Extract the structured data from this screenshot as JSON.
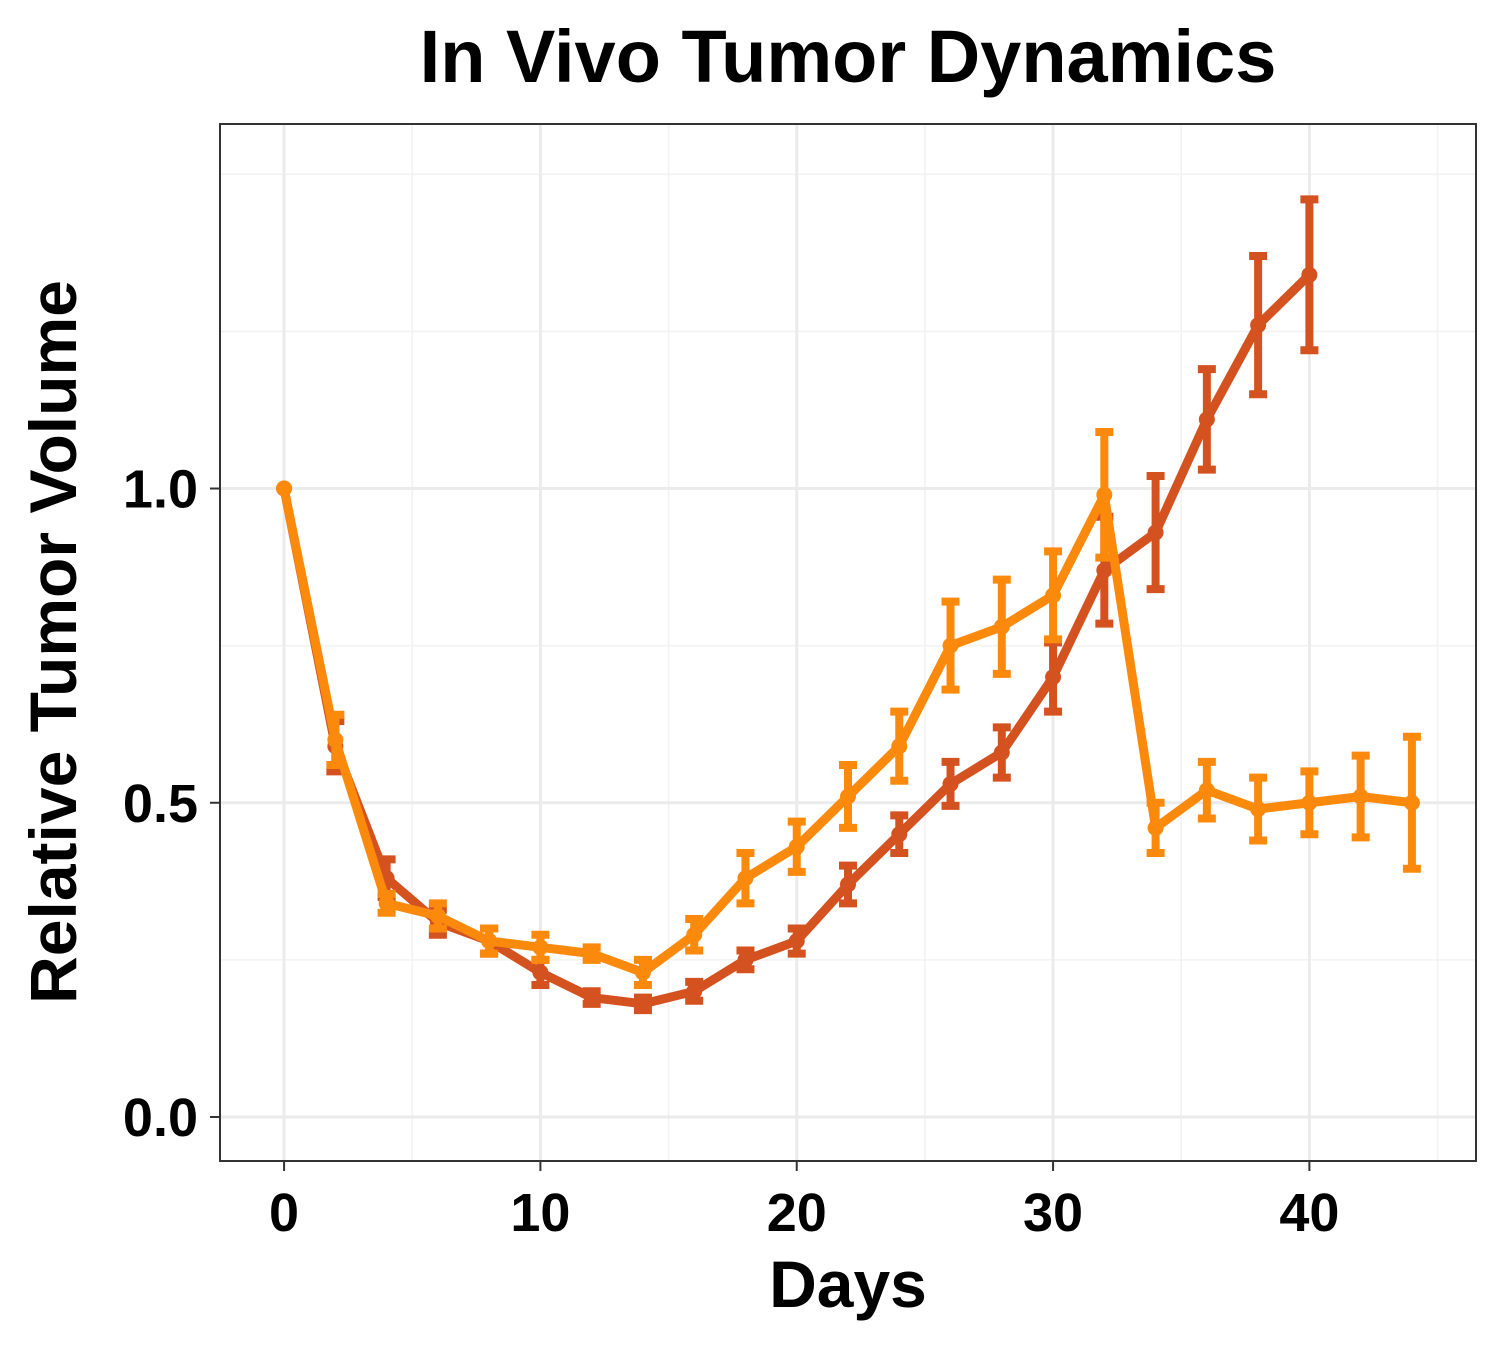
{
  "chart_data": {
    "type": "line",
    "title": "In Vivo Tumor Dynamics",
    "xlabel": "Days",
    "ylabel": "Relative Tumor Volume",
    "xlim": [
      -2.5,
      46.5
    ],
    "ylim": [
      -0.07,
      1.58
    ],
    "xticks": [
      0,
      10,
      20,
      30,
      40
    ],
    "xtick_labels": [
      "0",
      "10",
      "20",
      "30",
      "40"
    ],
    "yticks": [
      0.0,
      0.5,
      1.0
    ],
    "ytick_labels": [
      "0.0",
      "0.5",
      "1.0"
    ],
    "grid": true,
    "legend": "none",
    "series": [
      {
        "color": "#d4521f",
        "x": [
          0,
          2,
          4,
          6,
          8,
          10,
          12,
          14,
          16,
          18,
          20,
          22,
          24,
          26,
          28,
          30,
          32,
          34,
          36,
          38,
          40
        ],
        "y": [
          1.0,
          0.59,
          0.38,
          0.31,
          0.28,
          0.23,
          0.19,
          0.18,
          0.2,
          0.25,
          0.28,
          0.37,
          0.45,
          0.53,
          0.58,
          0.7,
          0.87,
          0.93,
          1.11,
          1.26,
          1.34
        ],
        "err": [
          0.0,
          0.04,
          0.03,
          0.02,
          0.02,
          0.02,
          0.01,
          0.01,
          0.015,
          0.015,
          0.02,
          0.03,
          0.03,
          0.035,
          0.04,
          0.055,
          0.085,
          0.09,
          0.08,
          0.11,
          0.12
        ]
      },
      {
        "color": "#fb8a0c",
        "x": [
          0,
          2,
          4,
          6,
          8,
          10,
          12,
          14,
          16,
          18,
          20,
          22,
          24,
          26,
          28,
          30,
          32,
          34,
          36,
          38,
          40,
          42,
          44
        ],
        "y": [
          1.0,
          0.6,
          0.34,
          0.32,
          0.28,
          0.27,
          0.26,
          0.23,
          0.29,
          0.38,
          0.43,
          0.51,
          0.59,
          0.75,
          0.78,
          0.83,
          0.99,
          0.46,
          0.52,
          0.49,
          0.5,
          0.51,
          0.5
        ],
        "err": [
          0.0,
          0.04,
          0.015,
          0.02,
          0.02,
          0.02,
          0.01,
          0.02,
          0.025,
          0.04,
          0.04,
          0.05,
          0.055,
          0.07,
          0.075,
          0.07,
          0.1,
          0.04,
          0.045,
          0.05,
          0.05,
          0.065,
          0.105
        ]
      }
    ]
  }
}
